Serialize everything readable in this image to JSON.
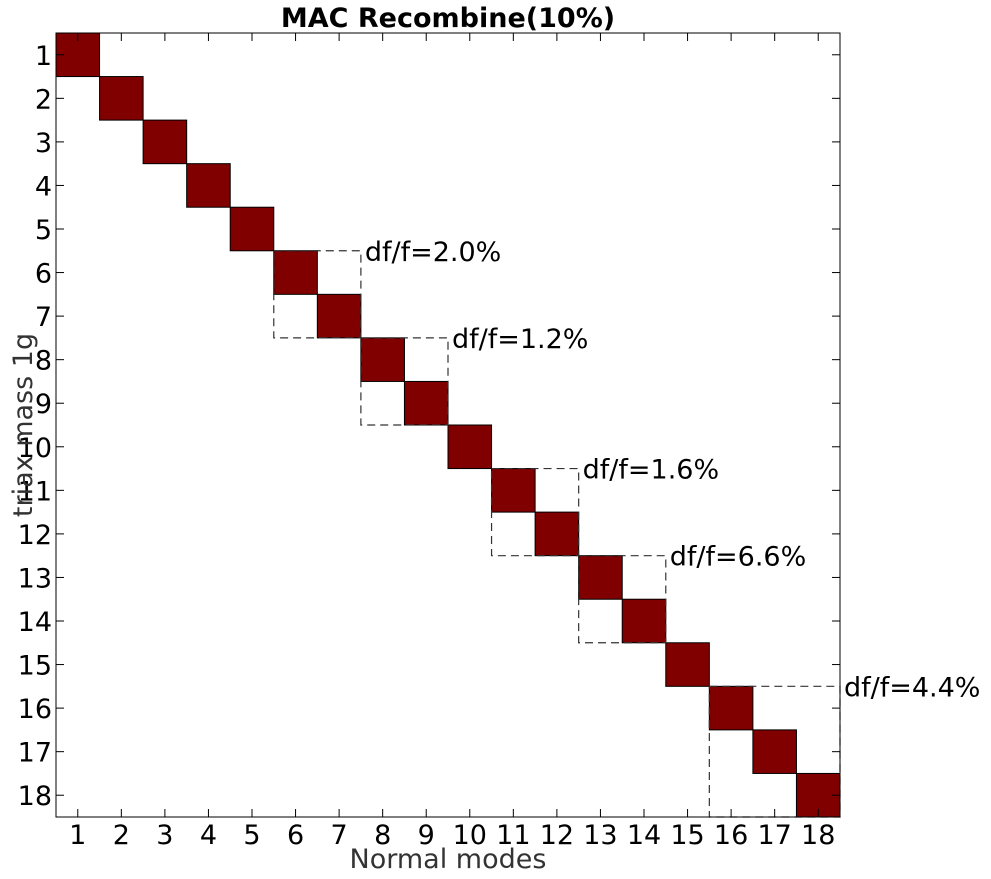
{
  "chart_data": {
    "type": "heatmap",
    "title": "MAC Recombine(10%)",
    "xlabel": "Normal modes",
    "ylabel": "triax mass 1g",
    "x_categories": [
      "1",
      "2",
      "3",
      "4",
      "5",
      "6",
      "7",
      "8",
      "9",
      "10",
      "11",
      "12",
      "13",
      "14",
      "15",
      "16",
      "17",
      "18"
    ],
    "y_categories": [
      "1",
      "2",
      "3",
      "4",
      "5",
      "6",
      "7",
      "8",
      "9",
      "10",
      "11",
      "12",
      "13",
      "14",
      "15",
      "16",
      "17",
      "18"
    ],
    "cell_color": "#800000",
    "background_color": "#ffffff",
    "cells": [
      {
        "x": 1,
        "y": 1,
        "value": 1
      },
      {
        "x": 2,
        "y": 2,
        "value": 1
      },
      {
        "x": 3,
        "y": 3,
        "value": 1
      },
      {
        "x": 4,
        "y": 4,
        "value": 1
      },
      {
        "x": 5,
        "y": 5,
        "value": 1
      },
      {
        "x": 6,
        "y": 6,
        "value": 1
      },
      {
        "x": 7,
        "y": 7,
        "value": 1
      },
      {
        "x": 8,
        "y": 8,
        "value": 1
      },
      {
        "x": 9,
        "y": 9,
        "value": 1
      },
      {
        "x": 10,
        "y": 10,
        "value": 1
      },
      {
        "x": 11,
        "y": 11,
        "value": 1
      },
      {
        "x": 12,
        "y": 12,
        "value": 1
      },
      {
        "x": 13,
        "y": 13,
        "value": 1
      },
      {
        "x": 14,
        "y": 14,
        "value": 1
      },
      {
        "x": 15,
        "y": 15,
        "value": 1
      },
      {
        "x": 16,
        "y": 16,
        "value": 1
      },
      {
        "x": 17,
        "y": 17,
        "value": 1
      },
      {
        "x": 18,
        "y": 18,
        "value": 1
      }
    ],
    "annotations": [
      {
        "text": "df/f=2.0%",
        "modes": [
          6,
          7
        ]
      },
      {
        "text": "df/f=1.2%",
        "modes": [
          8,
          9
        ]
      },
      {
        "text": "df/f=1.6%",
        "modes": [
          11,
          12
        ]
      },
      {
        "text": "df/f=6.6%",
        "modes": [
          13,
          14
        ]
      },
      {
        "text": "df/f=4.4%",
        "modes": [
          16,
          17,
          18
        ]
      }
    ],
    "grid": false,
    "legend": "none"
  }
}
